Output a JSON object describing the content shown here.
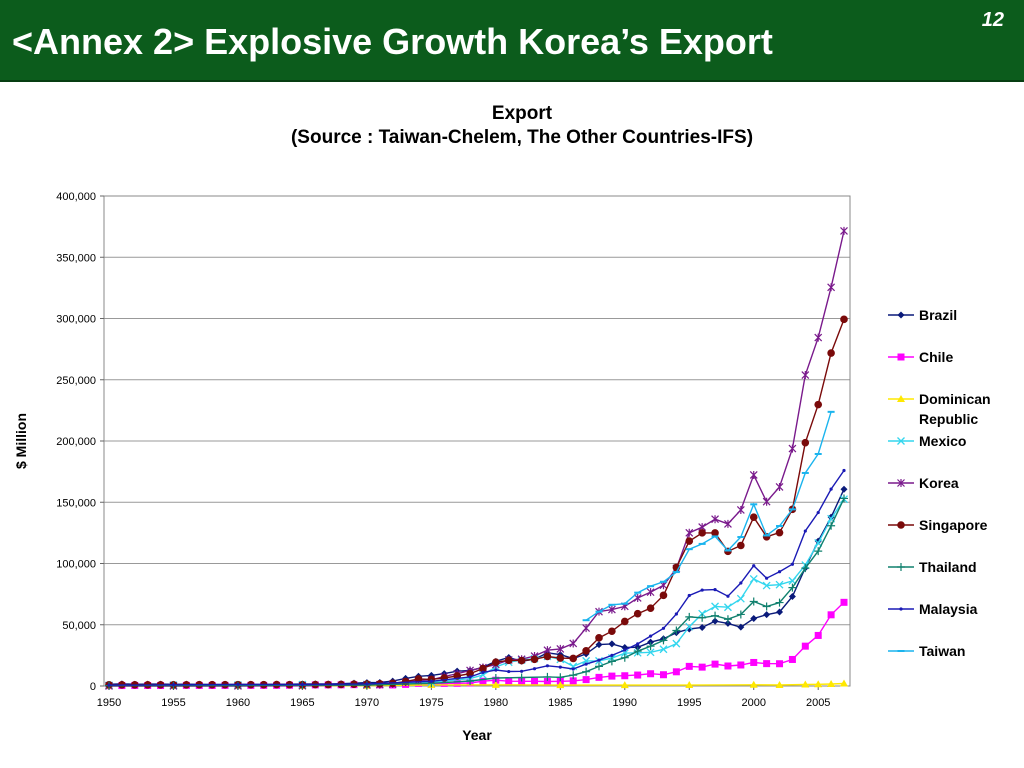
{
  "slide": {
    "title": "<Annex 2> Explosive Growth Korea’s Export",
    "page_number": "12",
    "header_color": "#0c5c1c"
  },
  "chart_data": {
    "type": "line",
    "title": "Export",
    "subtitle": "(Source : Taiwan-Chelem, The Other Countries-IFS)",
    "xlabel": "Year",
    "ylabel": "$ Million",
    "xlim": [
      1950,
      2008
    ],
    "ylim": [
      0,
      400000
    ],
    "x_ticks": [
      1950,
      1955,
      1960,
      1965,
      1970,
      1975,
      1980,
      1985,
      1990,
      1995,
      2000,
      2005
    ],
    "y_ticks": [
      0,
      50000,
      100000,
      150000,
      200000,
      250000,
      300000,
      350000,
      400000
    ],
    "x_tick_labels": [
      "1950",
      "1955",
      "1960",
      "1965",
      "1970",
      "1975",
      "1980",
      "1985",
      "1990",
      "1995",
      "2000",
      "2005"
    ],
    "y_tick_labels": [
      "0",
      "50,000",
      "100,000",
      "150,000",
      "200,000",
      "250,000",
      "300,000",
      "350,000",
      "400,000"
    ],
    "grid": "horizontal",
    "legend": "right",
    "series": [
      {
        "name": "Brazil",
        "color": "#0a1a7a",
        "marker": "diamond",
        "x": [
          1950,
          1951,
          1952,
          1953,
          1954,
          1955,
          1956,
          1957,
          1958,
          1959,
          1960,
          1961,
          1962,
          1963,
          1964,
          1965,
          1966,
          1967,
          1968,
          1969,
          1970,
          1971,
          1972,
          1973,
          1974,
          1975,
          1976,
          1977,
          1978,
          1979,
          1980,
          1981,
          1982,
          1983,
          1984,
          1985,
          1986,
          1987,
          1988,
          1989,
          1990,
          1991,
          1992,
          1993,
          1994,
          1995,
          1996,
          1997,
          1998,
          1999,
          2000,
          2001,
          2002,
          2003,
          2004,
          2005,
          2006,
          2007
        ],
        "values": [
          1355,
          1769,
          1418,
          1539,
          1562,
          1423,
          1482,
          1392,
          1244,
          1282,
          1270,
          1403,
          1214,
          1406,
          1430,
          1595,
          1741,
          1654,
          1881,
          2311,
          2739,
          2904,
          3991,
          6199,
          7951,
          8670,
          10128,
          12120,
          12659,
          15244,
          20132,
          23293,
          20175,
          21899,
          27005,
          25639,
          22349,
          26224,
          33789,
          34383,
          31414,
          31620,
          35793,
          38555,
          43545,
          46506,
          47747,
          52994,
          51140,
          48011,
          55086,
          58223,
          60362,
          73084,
          96475,
          118308,
          137807,
          160649
        ]
      },
      {
        "name": "Chile",
        "color": "#ff00ff",
        "marker": "square",
        "x": [
          1950,
          1951,
          1952,
          1953,
          1954,
          1955,
          1956,
          1957,
          1958,
          1959,
          1960,
          1961,
          1962,
          1963,
          1964,
          1965,
          1966,
          1967,
          1968,
          1969,
          1970,
          1971,
          1972,
          1973,
          1974,
          1975,
          1976,
          1977,
          1978,
          1979,
          1980,
          1981,
          1982,
          1983,
          1984,
          1985,
          1986,
          1987,
          1988,
          1989,
          1990,
          1991,
          1992,
          1993,
          1994,
          1995,
          1996,
          1997,
          1998,
          1999,
          2000,
          2001,
          2002,
          2003,
          2004,
          2005,
          2006,
          2007
        ],
        "values": [
          300,
          370,
          450,
          410,
          390,
          470,
          510,
          470,
          420,
          500,
          490,
          510,
          530,
          540,
          620,
          690,
          880,
          910,
          940,
          1070,
          1130,
          960,
          850,
          1310,
          2150,
          1590,
          2120,
          2190,
          2480,
          3890,
          4710,
          3950,
          3800,
          3840,
          3650,
          3800,
          4200,
          5220,
          7050,
          8080,
          8370,
          8940,
          10010,
          9200,
          11600,
          16020,
          15400,
          17870,
          16320,
          17160,
          19210,
          18270,
          18180,
          21660,
          32520,
          41270,
          58120,
          68300
        ]
      },
      {
        "name": "Dominican Republic",
        "color": "#ffe800",
        "marker": "triangle",
        "x": [
          1950,
          1955,
          1960,
          1965,
          1970,
          1975,
          1980,
          1985,
          1990,
          1995,
          2000,
          2002,
          2004,
          2005,
          2006,
          2007
        ],
        "values": [
          90,
          110,
          180,
          130,
          210,
          890,
          960,
          740,
          730,
          770,
          970,
          830,
          1200,
          1400,
          1600,
          2000
        ]
      },
      {
        "name": "Mexico",
        "color": "#33d6ee",
        "marker": "x",
        "x": [
          1950,
          1955,
          1960,
          1965,
          1970,
          1975,
          1978,
          1979,
          1980,
          1981,
          1982,
          1983,
          1984,
          1985,
          1986,
          1987,
          1988,
          1989,
          1990,
          1991,
          1992,
          1993,
          1994,
          1995,
          1996,
          1997,
          1998,
          1999,
          2000,
          2001,
          2002,
          2003,
          2004,
          2005,
          2006,
          2007
        ],
        "values": [
          520,
          740,
          760,
          1110,
          1280,
          3000,
          6000,
          9000,
          15500,
          19400,
          21200,
          22300,
          24200,
          21700,
          16000,
          20500,
          20500,
          22800,
          26800,
          27100,
          27500,
          30000,
          34600,
          48400,
          59000,
          65000,
          64300,
          71300,
          87400,
          82000,
          82700,
          85800,
          98700,
          116800,
          136600,
          152500
        ]
      },
      {
        "name": "Korea",
        "color": "#7a1a8c",
        "marker": "star",
        "x": [
          1950,
          1955,
          1960,
          1965,
          1970,
          1971,
          1972,
          1973,
          1974,
          1975,
          1976,
          1977,
          1978,
          1979,
          1980,
          1981,
          1982,
          1983,
          1984,
          1985,
          1986,
          1987,
          1988,
          1989,
          1990,
          1991,
          1992,
          1993,
          1994,
          1995,
          1996,
          1997,
          1998,
          1999,
          2000,
          2001,
          2002,
          2003,
          2004,
          2005,
          2006,
          2007
        ],
        "values": [
          20,
          20,
          30,
          180,
          840,
          1070,
          1620,
          3230,
          4460,
          5080,
          7720,
          10050,
          12710,
          15060,
          17500,
          21250,
          21850,
          24450,
          29250,
          30280,
          34710,
          47280,
          60700,
          62380,
          65020,
          71870,
          76630,
          82240,
          96010,
          125060,
          129720,
          136160,
          132310,
          143690,
          172270,
          150440,
          162470,
          193820,
          253840,
          284420,
          325460,
          371490
        ]
      },
      {
        "name": "Singapore",
        "color": "#7a0a0a",
        "marker": "circle",
        "x": [
          1950,
          1951,
          1952,
          1953,
          1954,
          1955,
          1956,
          1957,
          1958,
          1959,
          1960,
          1961,
          1962,
          1963,
          1964,
          1965,
          1966,
          1967,
          1968,
          1969,
          1970,
          1971,
          1972,
          1973,
          1974,
          1975,
          1976,
          1977,
          1978,
          1979,
          1980,
          1981,
          1982,
          1983,
          1984,
          1985,
          1986,
          1987,
          1988,
          1989,
          1990,
          1991,
          1992,
          1993,
          1994,
          1995,
          1996,
          1997,
          1998,
          1999,
          2000,
          2001,
          2002,
          2003,
          2004,
          2005,
          2006,
          2007
        ],
        "values": [
          1000,
          1000,
          1000,
          1000,
          1000,
          1000,
          1000,
          1100,
          1100,
          1100,
          1130,
          1100,
          1100,
          1200,
          1100,
          1100,
          1200,
          1200,
          1300,
          1500,
          1550,
          1750,
          2200,
          3600,
          5800,
          5400,
          6600,
          8200,
          10100,
          14200,
          19400,
          21000,
          20800,
          21800,
          24100,
          22800,
          22500,
          28700,
          39300,
          44700,
          52700,
          59000,
          63500,
          74000,
          96800,
          118300,
          125000,
          125000,
          109900,
          114700,
          137800,
          121800,
          125200,
          144200,
          198600,
          229700,
          271800,
          299300
        ]
      },
      {
        "name": "Thailand",
        "color": "#10806e",
        "marker": "plus",
        "x": [
          1950,
          1955,
          1960,
          1965,
          1970,
          1975,
          1978,
          1980,
          1982,
          1984,
          1985,
          1986,
          1987,
          1988,
          1989,
          1990,
          1991,
          1992,
          1993,
          1994,
          1995,
          1996,
          1997,
          1998,
          1999,
          2000,
          2001,
          2002,
          2003,
          2004,
          2005,
          2006,
          2007
        ],
        "values": [
          300,
          340,
          410,
          620,
          710,
          2200,
          4100,
          6500,
          6900,
          7400,
          7100,
          8900,
          11700,
          16000,
          20100,
          23100,
          28400,
          32500,
          37200,
          45300,
          56400,
          55700,
          57400,
          54500,
          58400,
          69000,
          64900,
          68100,
          80300,
          96200,
          110100,
          130800,
          153100
        ]
      },
      {
        "name": "Malaysia",
        "color": "#1a1ab5",
        "marker": "dot",
        "x": [
          1950,
          1955,
          1960,
          1965,
          1970,
          1975,
          1978,
          1979,
          1980,
          1981,
          1982,
          1983,
          1984,
          1985,
          1986,
          1987,
          1988,
          1989,
          1990,
          1991,
          1992,
          1993,
          1994,
          1995,
          1996,
          1997,
          1998,
          1999,
          2000,
          2001,
          2002,
          2003,
          2004,
          2005,
          2006,
          2007
        ],
        "values": [
          700,
          1000,
          1200,
          1200,
          1700,
          3800,
          7400,
          11100,
          13000,
          11800,
          12000,
          14100,
          16500,
          15400,
          13900,
          17900,
          21100,
          25000,
          29400,
          34400,
          40700,
          47100,
          58800,
          73900,
          78300,
          78700,
          73300,
          84100,
          98200,
          88000,
          93300,
          99400,
          126500,
          141600,
          160700,
          175900
        ]
      },
      {
        "name": "Taiwan",
        "color": "#1ab4ee",
        "marker": "dash",
        "x": [
          1987,
          1988,
          1989,
          1990,
          1991,
          1992,
          1993,
          1994,
          1995,
          1996,
          1997,
          1998,
          1999,
          2000,
          2001,
          2002,
          2003,
          2004,
          2005,
          2006
        ],
        "values": [
          53700,
          60700,
          66300,
          67200,
          76200,
          81500,
          85100,
          93000,
          111700,
          116000,
          122100,
          110600,
          121600,
          148300,
          122900,
          130600,
          144200,
          173900,
          189400,
          223800
        ]
      }
    ]
  }
}
